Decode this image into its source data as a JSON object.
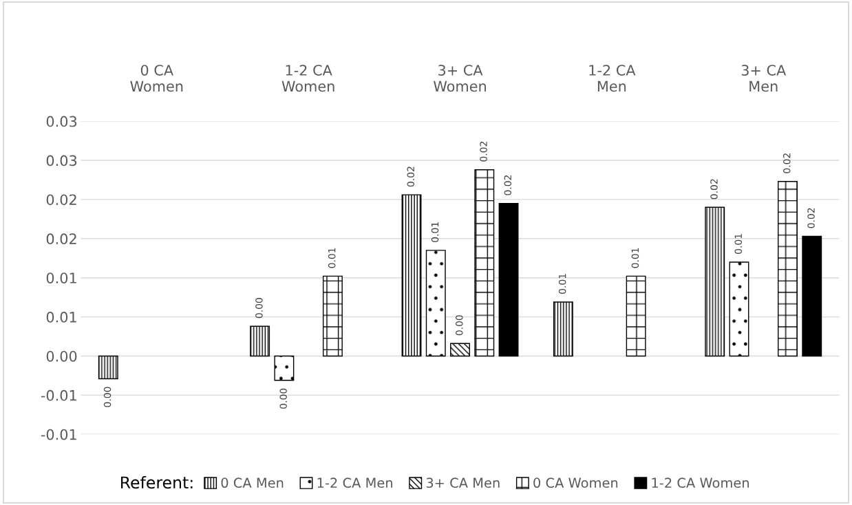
{
  "chart_data": {
    "type": "bar",
    "categories": [
      "0 CA\nWomen",
      "1-2 CA\nWomen",
      "3+ CA\nWomen",
      "1-2 CA\nMen",
      "3+ CA\nMen"
    ],
    "series": [
      {
        "name": "0 CA Men",
        "color": "#000000",
        "values": [
          -0.0029,
          0.0038,
          0.0206,
          0.0069,
          0.019
        ],
        "value_labels": [
          "0.00",
          "0.00",
          "0.02",
          "0.01",
          "0.02"
        ]
      },
      {
        "name": "1-2 CA Men",
        "color": "#000000",
        "values": [
          null,
          -0.0031,
          0.0135,
          null,
          0.012
        ],
        "value_labels": [
          null,
          "0.00",
          "0.01",
          null,
          "0.01"
        ]
      },
      {
        "name": "3+ CA Men",
        "color": "#000000",
        "values": [
          null,
          null,
          0.0016,
          null,
          null
        ],
        "value_labels": [
          null,
          null,
          "0.00",
          null,
          null
        ]
      },
      {
        "name": "0 CA Women",
        "color": "#000000",
        "values": [
          null,
          0.0102,
          0.0238,
          0.0102,
          0.0223
        ],
        "value_labels": [
          null,
          "0.01",
          "0.02",
          "0.01",
          "0.02"
        ]
      },
      {
        "name": "1-2 CA Women",
        "color": "#000000",
        "values": [
          null,
          null,
          0.0195,
          null,
          0.0153
        ],
        "value_labels": [
          null,
          null,
          "0.02",
          null,
          "0.02"
        ]
      }
    ],
    "ylim": [
      -0.01,
      0.03
    ],
    "yticks": [
      {
        "value": -0.01,
        "label": "-0.01"
      },
      {
        "value": -0.005,
        "label": "-0.01"
      },
      {
        "value": 0,
        "label": "0.00"
      },
      {
        "value": 0.005,
        "label": "0.01"
      },
      {
        "value": 0.01,
        "label": "0.01"
      },
      {
        "value": 0.015,
        "label": "0.02"
      },
      {
        "value": 0.02,
        "label": "0.02"
      },
      {
        "value": 0.025,
        "label": "0.03"
      },
      {
        "value": 0.03,
        "label": "0.03"
      }
    ],
    "grid": "y",
    "legend": "bottom",
    "legend_title": "Referent:"
  }
}
